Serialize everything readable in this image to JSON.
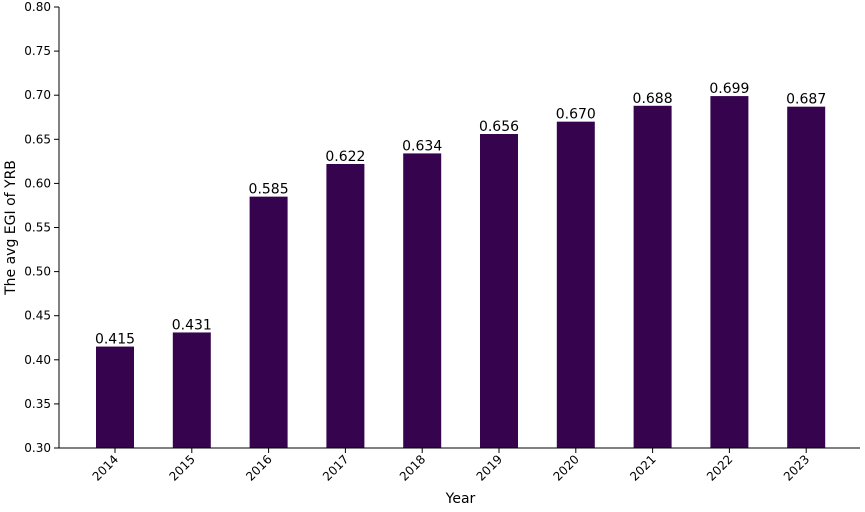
{
  "chart_data": {
    "type": "bar",
    "title": "",
    "xlabel": "Year",
    "ylabel": "The avg EGI of YRB",
    "categories": [
      "2014",
      "2015",
      "2016",
      "2017",
      "2018",
      "2019",
      "2020",
      "2021",
      "2022",
      "2023"
    ],
    "values": [
      0.415,
      0.431,
      0.585,
      0.622,
      0.634,
      0.656,
      0.67,
      0.688,
      0.699,
      0.687
    ],
    "value_labels": [
      "0.415",
      "0.431",
      "0.585",
      "0.622",
      "0.634",
      "0.656",
      "0.670",
      "0.688",
      "0.699",
      "0.687"
    ],
    "ylim": [
      0.3,
      0.8
    ],
    "yticks": [
      0.3,
      0.35,
      0.4,
      0.45,
      0.5,
      0.55,
      0.6,
      0.65,
      0.7,
      0.75,
      0.8
    ],
    "ytick_labels": [
      "0.30",
      "0.35",
      "0.40",
      "0.45",
      "0.50",
      "0.55",
      "0.60",
      "0.65",
      "0.70",
      "0.75",
      "0.80"
    ],
    "grid": false,
    "legend": "none",
    "bar_color": "#36044f"
  }
}
